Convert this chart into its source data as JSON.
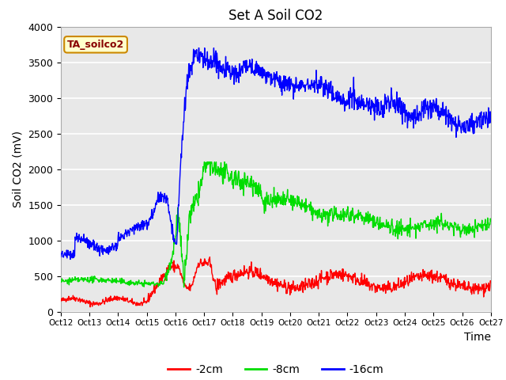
{
  "title": "Set A Soil CO2",
  "ylabel": "Soil CO2 (mV)",
  "xlabel": "Time",
  "legend_label": "TA_soilco2",
  "series_labels": [
    "-2cm",
    "-8cm",
    "-16cm"
  ],
  "series_colors": [
    "#ff0000",
    "#00dd00",
    "#0000ff"
  ],
  "ylim": [
    0,
    4000
  ],
  "yticks": [
    0,
    500,
    1000,
    1500,
    2000,
    2500,
    3000,
    3500,
    4000
  ],
  "xtick_labels": [
    "Oct 12",
    "Oct 13",
    "Oct 14",
    "Oct 15",
    "Oct 16",
    "Oct 17",
    "Oct 18",
    "Oct 19",
    "Oct 20",
    "Oct 21",
    "Oct 22",
    "Oct 23",
    "Oct 24",
    "Oct 25",
    "Oct 26",
    "Oct 27"
  ],
  "bg_color": "#e8e8e8",
  "fig_color": "#ffffff",
  "grid_color": "#ffffff",
  "legend_box_facecolor": "#ffffcc",
  "legend_box_edgecolor": "#cc8800",
  "legend_text_color": "#880000"
}
